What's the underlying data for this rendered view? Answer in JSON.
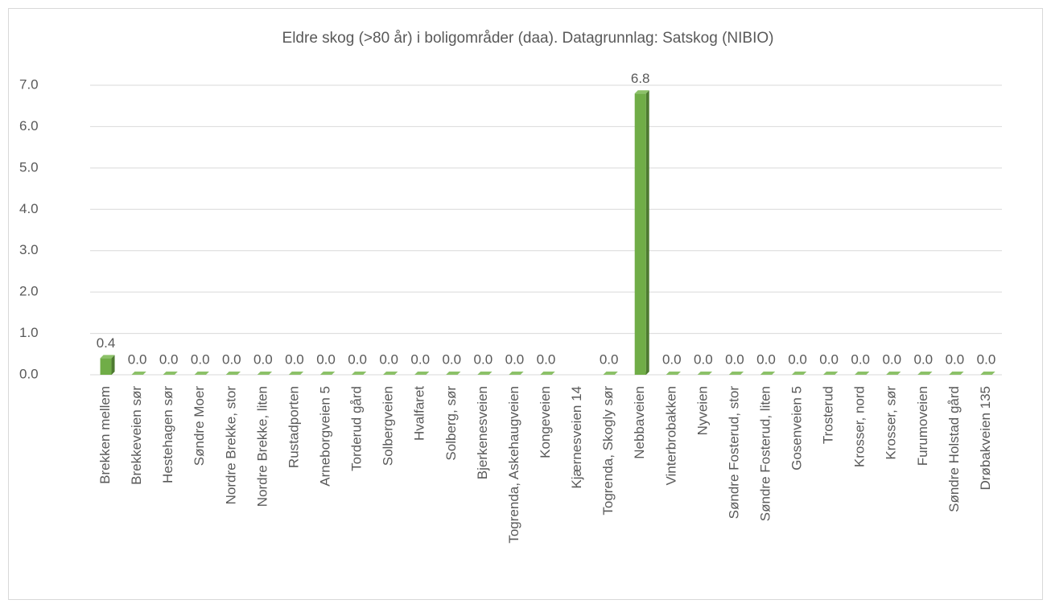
{
  "chart_data": {
    "type": "bar",
    "title": "Eldre skog  (>80 år) i boligområder (daa). Datagrunnlag: Satskog (NIBIO)",
    "categories": [
      "Brekken mellem",
      "Brekkeveien sør",
      "Hestehagen sør",
      "Søndre Moer",
      "Nordre Brekke, stor",
      "Nordre Brekke, liten",
      "Rustadporten",
      "Arneborgveien 5",
      "Torderud gård",
      "Solbergveien",
      "Hvalfaret",
      "Solberg, sør",
      "Bjerkenesveien",
      "Togrenda, Askehaugveien",
      "Kongeveien",
      "Kjærnesveien 14",
      "Togrenda, Skogly sør",
      "Nebbaveien",
      "Vinterbrobakken",
      "Nyveien",
      "Søndre Fosterud, stor",
      "Søndre Fosterud, liten",
      "Gosenveien 5",
      "Trosterud",
      "Krosser, nord",
      "Krosser, sør",
      "Furumoveien",
      "Søndre Holstad gård",
      "Drøbakveien 135"
    ],
    "values": [
      0.4,
      0,
      0,
      0,
      0,
      0,
      0,
      0,
      0,
      0,
      0,
      0,
      0,
      0,
      0,
      null,
      0,
      6.8,
      0,
      0,
      0,
      0,
      0,
      0,
      0,
      0,
      0,
      0,
      0
    ],
    "value_labels": [
      "0.4",
      "0.0",
      "0.0",
      "0.0",
      "0.0",
      "0.0",
      "0.0",
      "0.0",
      "0.0",
      "0.0",
      "0.0",
      "0.0",
      "0.0",
      "0.0",
      "0.0",
      null,
      "0.0",
      "6.8",
      "0.0",
      "0.0",
      "0.0",
      "0.0",
      "0.0",
      "0.0",
      "0.0",
      "0.0",
      "0.0",
      "0.0",
      "0.0"
    ],
    "color": "#70ad47",
    "ylim": [
      0,
      7
    ],
    "yticks": [
      {
        "value": 0,
        "label": "0.0"
      },
      {
        "value": 1,
        "label": "1.0"
      },
      {
        "value": 2,
        "label": "2.0"
      },
      {
        "value": 3,
        "label": "3.0"
      },
      {
        "value": 4,
        "label": "4.0"
      },
      {
        "value": 5,
        "label": "5.0"
      },
      {
        "value": 6,
        "label": "6.0"
      },
      {
        "value": 7,
        "label": "7.0"
      }
    ],
    "grid": true
  }
}
